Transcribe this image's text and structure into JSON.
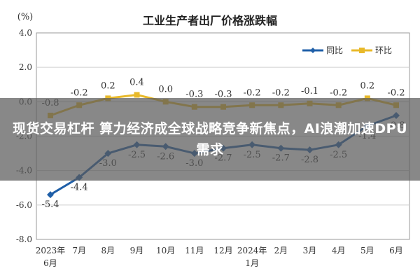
{
  "chart_data": {
    "type": "line",
    "title": "工业生产者出厂价格涨跌幅",
    "ylabel": "(%)",
    "ylim": [
      -8.0,
      4.0
    ],
    "yticks": [
      "4.0",
      "2.0",
      "0.0",
      "-2.0",
      "-4.0",
      "-6.0",
      "-8.0"
    ],
    "ytick_values": [
      4,
      2,
      0,
      -2,
      -4,
      -6,
      -8
    ],
    "categories": [
      [
        "2023年",
        "6月"
      ],
      [
        "7月"
      ],
      [
        "8月"
      ],
      [
        "9月"
      ],
      [
        "10月"
      ],
      [
        "11月"
      ],
      [
        "12月"
      ],
      [
        "2024年",
        "1月"
      ],
      [
        "2月"
      ],
      [
        "3月"
      ],
      [
        "4月"
      ],
      [
        "5月"
      ],
      [
        "6月"
      ]
    ],
    "grid": true,
    "legend_position": "top-right",
    "series": [
      {
        "name": "同比",
        "color": "#1f5fa8",
        "values": [
          -5.4,
          -4.4,
          -3.0,
          -2.5,
          -2.6,
          -3.0,
          -2.7,
          -2.5,
          -2.7,
          -2.8,
          -2.5,
          -1.4,
          -0.8
        ],
        "labels": [
          "-5.4",
          "-4.4",
          "-3.0",
          "-2.5",
          "-2.6",
          "-3.0",
          "-2.7",
          "-2.5",
          "-2.7",
          "-2.8",
          "-2.5",
          "-1.4",
          "-0.8"
        ]
      },
      {
        "name": "环比",
        "color": "#e8b92a",
        "values": [
          -0.8,
          -0.2,
          0.2,
          0.4,
          0.0,
          -0.3,
          -0.3,
          -0.2,
          -0.2,
          -0.1,
          -0.2,
          0.2,
          -0.2
        ],
        "labels": [
          "-0.8",
          "-0.2",
          "0.2",
          "0.4",
          "0.0",
          "-0.3",
          "-0.3",
          "-0.2",
          "-0.2",
          "-0.1",
          "-0.2",
          "0.2",
          "-0.2"
        ]
      }
    ]
  },
  "overlay": {
    "headline": "现货交易杠杆 算力经济成全球战略竞争新焦点，AI浪潮加速DPU需求"
  }
}
